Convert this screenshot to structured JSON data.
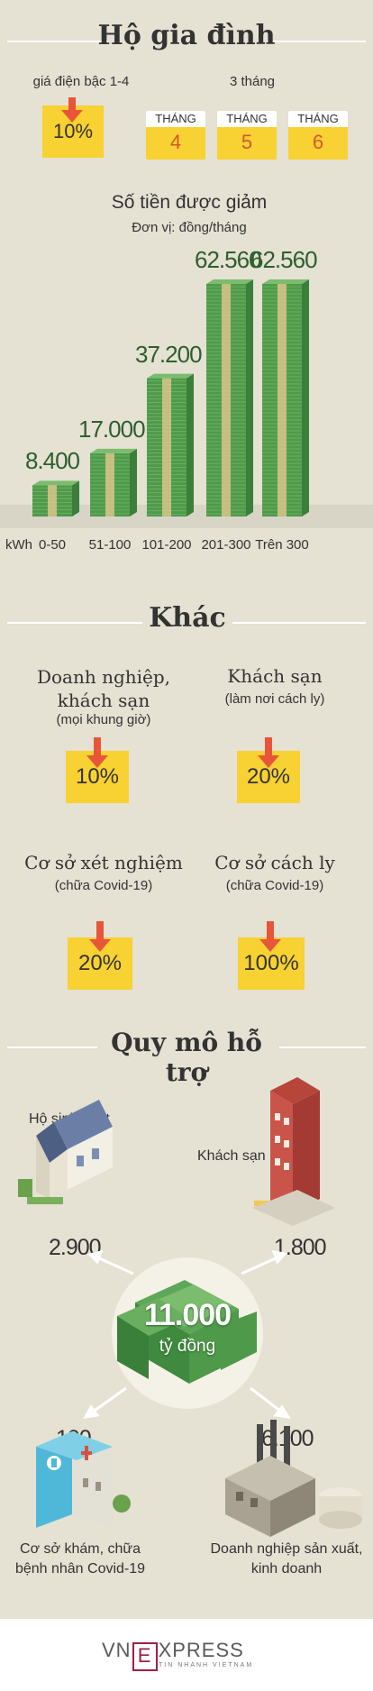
{
  "sections": {
    "household_title": "Hộ gia đình",
    "other_title": "Khác",
    "scale_title": "Quy mô hỗ trợ"
  },
  "household": {
    "tier_label": "giá điện bậc 1-4",
    "tier_pct": "10%",
    "months_label": "3 tháng",
    "months": [
      {
        "word": "THÁNG",
        "num": "4"
      },
      {
        "word": "THÁNG",
        "num": "5"
      },
      {
        "word": "THÁNG",
        "num": "6"
      }
    ]
  },
  "chart_data": {
    "type": "bar",
    "title": "Số tiền được giảm",
    "subtitle": "Đơn vị: đồng/tháng",
    "xlabel": "kWh",
    "categories": [
      "0-50",
      "51-100",
      "101-200",
      "201-300",
      "Trên 300"
    ],
    "values": [
      8400,
      17000,
      37200,
      62560,
      62560
    ],
    "value_labels": [
      "8.400",
      "17.000",
      "37.200",
      "62.560",
      "62.560"
    ],
    "ylim": [
      0,
      62560
    ]
  },
  "other": [
    {
      "title": "Doanh nghiệp, khách sạn",
      "sub": "(mọi khung giờ)",
      "pct": "10%"
    },
    {
      "title": "Khách sạn",
      "sub": "(làm nơi cách ly)",
      "pct": "20%"
    },
    {
      "title": "Cơ sở xét nghiệm",
      "sub": "(chữa Covid-19)",
      "pct": "20%"
    },
    {
      "title": "Cơ sở cách ly",
      "sub": "(chữa Covid-19)",
      "pct": "100%"
    }
  ],
  "scale": {
    "total_value": "11.000",
    "total_unit": "tỷ đồng",
    "items": [
      {
        "label": "Hộ sinh hoạt",
        "value": "2.900"
      },
      {
        "label": "Khách sạn",
        "value": "1.800"
      },
      {
        "label": "Cơ sở khám, chữa bệnh nhân Covid-19",
        "value": "100"
      },
      {
        "label": "Doanh nghiệp sản xuất, kinh doanh",
        "value": "6.100"
      }
    ]
  },
  "footer": {
    "brand": "VnExpress",
    "tagline": "TIN NHANH VIETNAM"
  },
  "colors": {
    "background": "#e5e1d3",
    "yellow": "#f8d132",
    "arrow": "#e8563a",
    "money_green": "#4e9a4a",
    "band": "#d9c58a"
  }
}
